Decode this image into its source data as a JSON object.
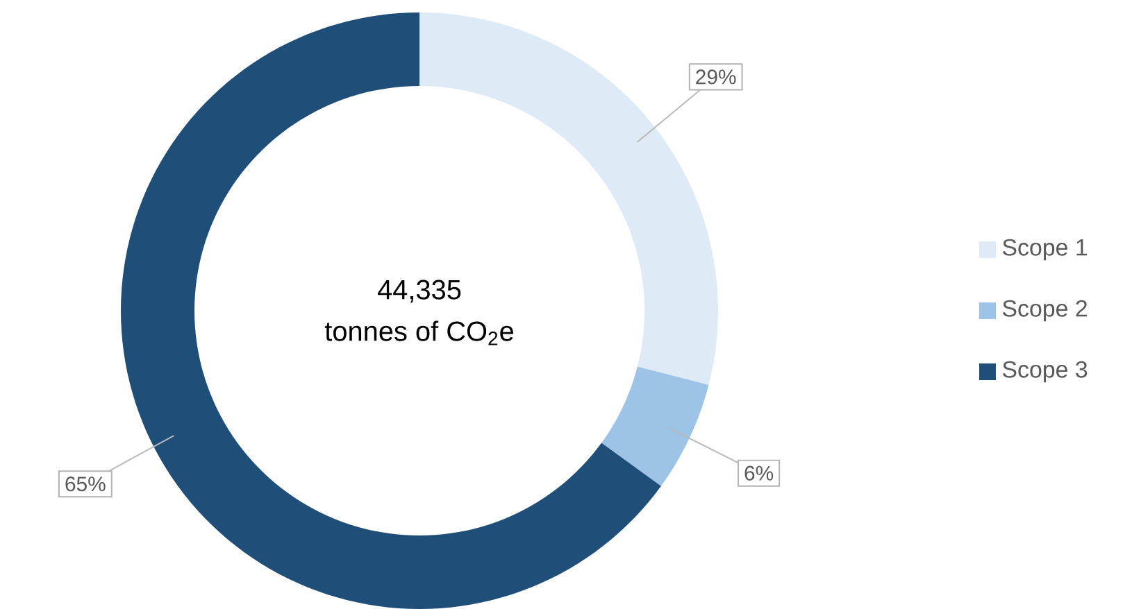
{
  "chart_data": {
    "type": "donut",
    "categories": [
      "Scope 1",
      "Scope 2",
      "Scope 3"
    ],
    "values": [
      29,
      6,
      65
    ],
    "colors": [
      "#deeaf6",
      "#9dc3e6",
      "#1f4e79"
    ],
    "value_labels": [
      "29%",
      "6%",
      "65%"
    ],
    "annotations": [
      "44,335",
      "tonnes of CO$_{2}$e"
    ],
    "legend": "right"
  }
}
